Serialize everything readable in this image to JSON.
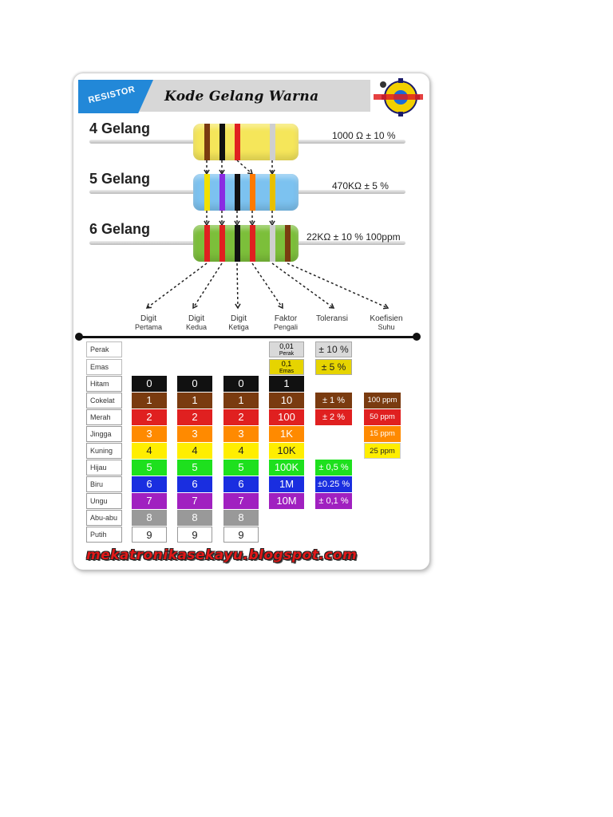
{
  "header": {
    "tag": "RESISTOR",
    "title": "Kode Gelang Warna"
  },
  "resistors": [
    {
      "label": "4 Gelang",
      "value": "1000 Ω ± 10 %",
      "body_color": "#f5e65a",
      "stripes": [
        "#7a3b10",
        "#111111",
        "#e02020",
        "#cfcfcf"
      ]
    },
    {
      "label": "5 Gelang",
      "value": "470KΩ ± 5 %",
      "body_color": "#7cc2f0",
      "stripes": [
        "#f2e000",
        "#8a2be2",
        "#111111",
        "#ff7a00",
        "#e8c000"
      ]
    },
    {
      "label": "6 Gelang",
      "value": "22KΩ ± 10 % 100ppm",
      "body_color": "#7cbf3a",
      "stripes": [
        "#e02020",
        "#e02020",
        "#111111",
        "#e02020",
        "#cfcfcf",
        "#7a3b10"
      ]
    }
  ],
  "band_captions": [
    [
      "Digit",
      "Pertama"
    ],
    [
      "Digit",
      "Kedua"
    ],
    [
      "Digit",
      "Ketiga"
    ],
    [
      "Faktor",
      "Pengali"
    ],
    [
      "Toleransi",
      ""
    ],
    [
      "Koefisien",
      "Suhu"
    ]
  ],
  "special_rows": [
    {
      "name": "Perak",
      "multiplier_top": "0,01",
      "multiplier_sub": "Perak",
      "tolerance": "± 10 %"
    },
    {
      "name": "Emas",
      "multiplier_top": "0,1",
      "multiplier_sub": "Emas",
      "tolerance": "± 5 %"
    }
  ],
  "color_rows": [
    {
      "name": "Hitam",
      "color": "#111111",
      "text": "#ffffff",
      "digit": "0",
      "multiplier": "1",
      "tolerance": "",
      "ppm": ""
    },
    {
      "name": "Cokelat",
      "color": "#7a3b10",
      "text": "#ffffff",
      "digit": "1",
      "multiplier": "10",
      "tolerance": "± 1 %",
      "ppm": "100 ppm"
    },
    {
      "name": "Merah",
      "color": "#e02020",
      "text": "#ffffff",
      "digit": "2",
      "multiplier": "100",
      "tolerance": "± 2 %",
      "ppm": "50 ppm"
    },
    {
      "name": "Jingga",
      "color": "#ff8a00",
      "text": "#ffffff",
      "digit": "3",
      "multiplier": "1K",
      "tolerance": "",
      "ppm": "15 ppm"
    },
    {
      "name": "Kuning",
      "color": "#ffee00",
      "text": "#222222",
      "digit": "4",
      "multiplier": "10K",
      "tolerance": "",
      "ppm": "25 ppm"
    },
    {
      "name": "Hijau",
      "color": "#1ee01e",
      "text": "#ffffff",
      "digit": "5",
      "multiplier": "100K",
      "tolerance": "± 0,5 %",
      "ppm": ""
    },
    {
      "name": "Biru",
      "color": "#1a2ee0",
      "text": "#ffffff",
      "digit": "6",
      "multiplier": "1M",
      "tolerance": "±0.25 %",
      "ppm": ""
    },
    {
      "name": "Ungu",
      "color": "#a020c0",
      "text": "#ffffff",
      "digit": "7",
      "multiplier": "10M",
      "tolerance": "± 0,1 %",
      "ppm": ""
    },
    {
      "name": "Abu-abu",
      "color": "#999999",
      "text": "#ffffff",
      "digit": "8",
      "multiplier": "",
      "tolerance": "",
      "ppm": ""
    },
    {
      "name": "Putih",
      "color": "#ffffff",
      "text": "#222222",
      "digit": "9",
      "multiplier": "",
      "tolerance": "",
      "ppm": ""
    }
  ],
  "colors": {
    "silver": "#d9d9d9",
    "gold": "#e6d400"
  },
  "footer": {
    "url": "mekatronikasekayu.blogspot.com"
  }
}
